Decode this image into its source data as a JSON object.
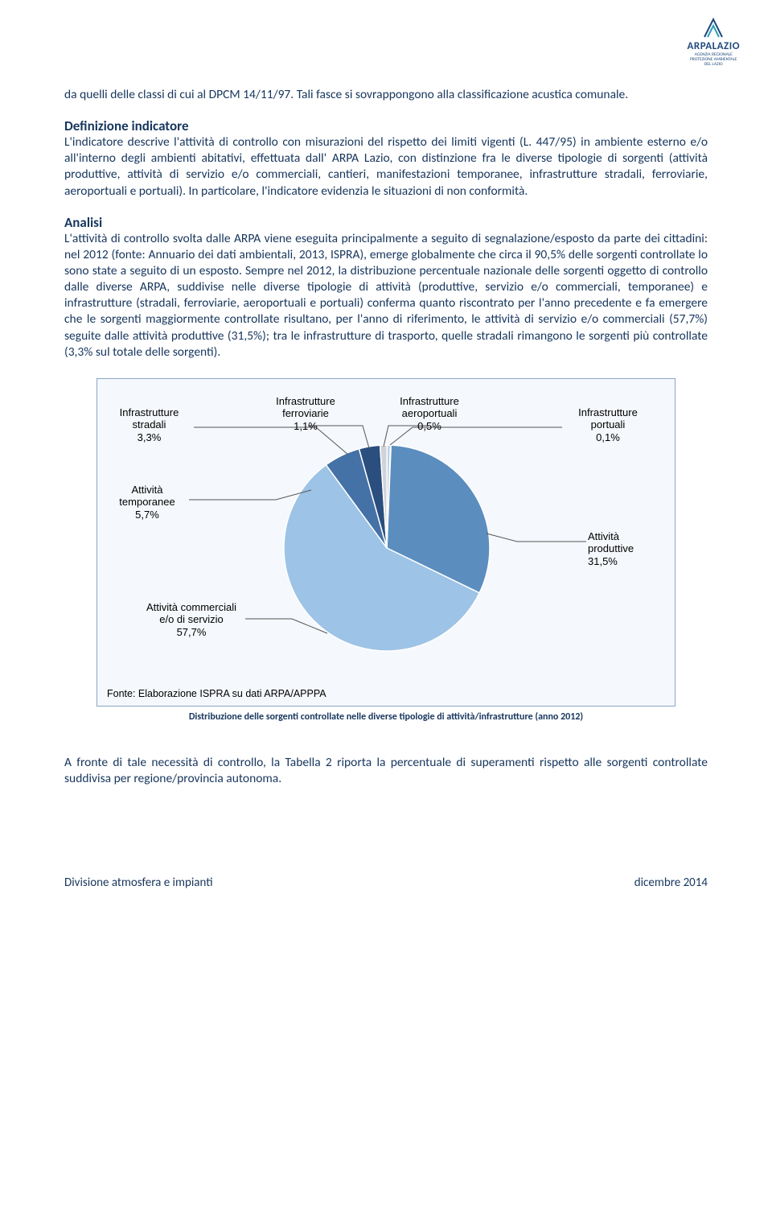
{
  "logo": {
    "name": "ARPALAZIO",
    "sub1": "AGENZIA REGIONALE",
    "sub2": "PROTEZIONE AMBIENTALE",
    "sub3": "DEL LAZIO",
    "color": "#1f497d"
  },
  "para_intro": "da quelli delle classi di cui al DPCM 14/11/97. Tali fasce si sovrappongono alla classificazione acustica comunale.",
  "h1": "Definizione indicatore",
  "para_def": "L'indicatore descrive l'attività di controllo con misurazioni del rispetto dei limiti vigenti (L. 447/95) in ambiente esterno e/o all'interno degli ambienti abitativi, effettuata dall' ARPA Lazio, con distinzione fra le diverse tipologie di sorgenti (attività produttive, attività di servizio e/o commerciali, cantieri, manifestazioni temporanee, infrastrutture stradali, ferroviarie, aeroportuali e portuali). In particolare, l'indicatore evidenzia le situazioni di non conformità.",
  "h2": "Analisi",
  "para_analisi": "L'attività di controllo svolta dalle ARPA viene eseguita principalmente a seguito di segnalazione/esposto da parte dei cittadini: nel 2012 (fonte: Annuario dei dati ambientali, 2013, ISPRA), emerge globalmente che circa il 90,5% delle sorgenti controllate lo sono state a seguito di un esposto. Sempre nel 2012, la distribuzione percentuale nazionale delle sorgenti oggetto di controllo dalle diverse ARPA, suddivise nelle diverse tipologie di attività (produttive, servizio e/o commerciali, temporanee) e infrastrutture (stradali, ferroviarie, aeroportuali e portuali) conferma quanto riscontrato per l'anno precedente e fa emergere che le sorgenti maggiormente controllate risultano, per l'anno di riferimento, le attività di servizio e/o commerciali (57,7%) seguite dalle attività produttive (31,5%); tra le infrastrutture di trasporto, quelle stradali rimangono le sorgenti più controllate (3,3% sul totale delle sorgenti).",
  "chart": {
    "type": "pie",
    "background": "#f5f8fc",
    "border": "#8ba5c6",
    "source": "Fonte: Elaborazione ISPRA su dati ARPA/APPPA",
    "slices": [
      {
        "label": "Attività commerciali e/o di servizio",
        "value": 57.7,
        "display": "Attività commerciali e/ o di servizio 57,7%",
        "color": "#9dc3e6"
      },
      {
        "label": "Attività produttive",
        "value": 31.5,
        "display": "Attività produttive 31,5%",
        "color": "#5b8ebf"
      },
      {
        "label": "Attività temporanee",
        "value": 5.7,
        "display": "Attività temporanee 5,7%",
        "color": "#4471a6"
      },
      {
        "label": "Infrastrutture stradali",
        "value": 3.3,
        "display": "Infrastrutture stradali 3,3%",
        "color": "#2a4e7e"
      },
      {
        "label": "Infrastrutture ferroviarie",
        "value": 1.1,
        "display": "Infrastrutture ferroviarie 1,1%",
        "color": "#d0d3d8"
      },
      {
        "label": "Infrastrutture aeroportuali",
        "value": 0.5,
        "display": "Infrastrutture aeroportuali 0,5%",
        "color": "#b7cde6"
      },
      {
        "label": "Infrastrutture portuali",
        "value": 0.1,
        "display": "Infrastrutture portuali 0,1%",
        "color": "#8aa9cc"
      }
    ]
  },
  "caption": "Distribuzione delle sorgenti controllate nelle diverse tipologie di attività/infrastrutture (anno 2012)",
  "para_after": "A fronte di tale necessità di controllo, la Tabella 2 riporta la percentuale di superamenti rispetto alle sorgenti controllate suddivisa per regione/provincia autonoma.",
  "footer_left": "Divisione atmosfera e impianti",
  "footer_right": "dicembre 2014"
}
